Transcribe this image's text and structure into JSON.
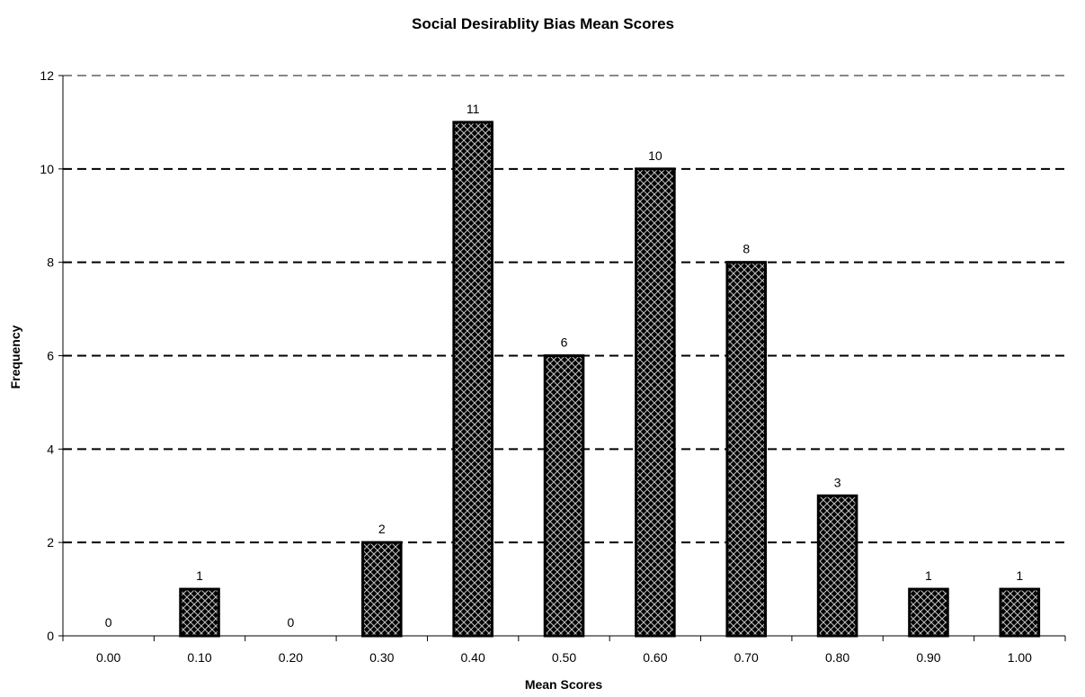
{
  "chart_data": {
    "type": "bar",
    "title": "Social Desirablity Bias Mean Scores",
    "xlabel": "Mean Scores",
    "ylabel": "Frequency",
    "categories": [
      "0.00",
      "0.10",
      "0.20",
      "0.30",
      "0.40",
      "0.50",
      "0.60",
      "0.70",
      "0.80",
      "0.90",
      "1.00"
    ],
    "values": [
      0,
      1,
      0,
      2,
      11,
      6,
      10,
      8,
      3,
      1,
      1
    ],
    "ylim": [
      0,
      12
    ],
    "yticks": [
      0,
      2,
      4,
      6,
      8,
      10,
      12
    ],
    "grid": "horizontal dashed",
    "legend": "none",
    "bar_fill": "crosshatch",
    "bar_color": "#000000"
  }
}
